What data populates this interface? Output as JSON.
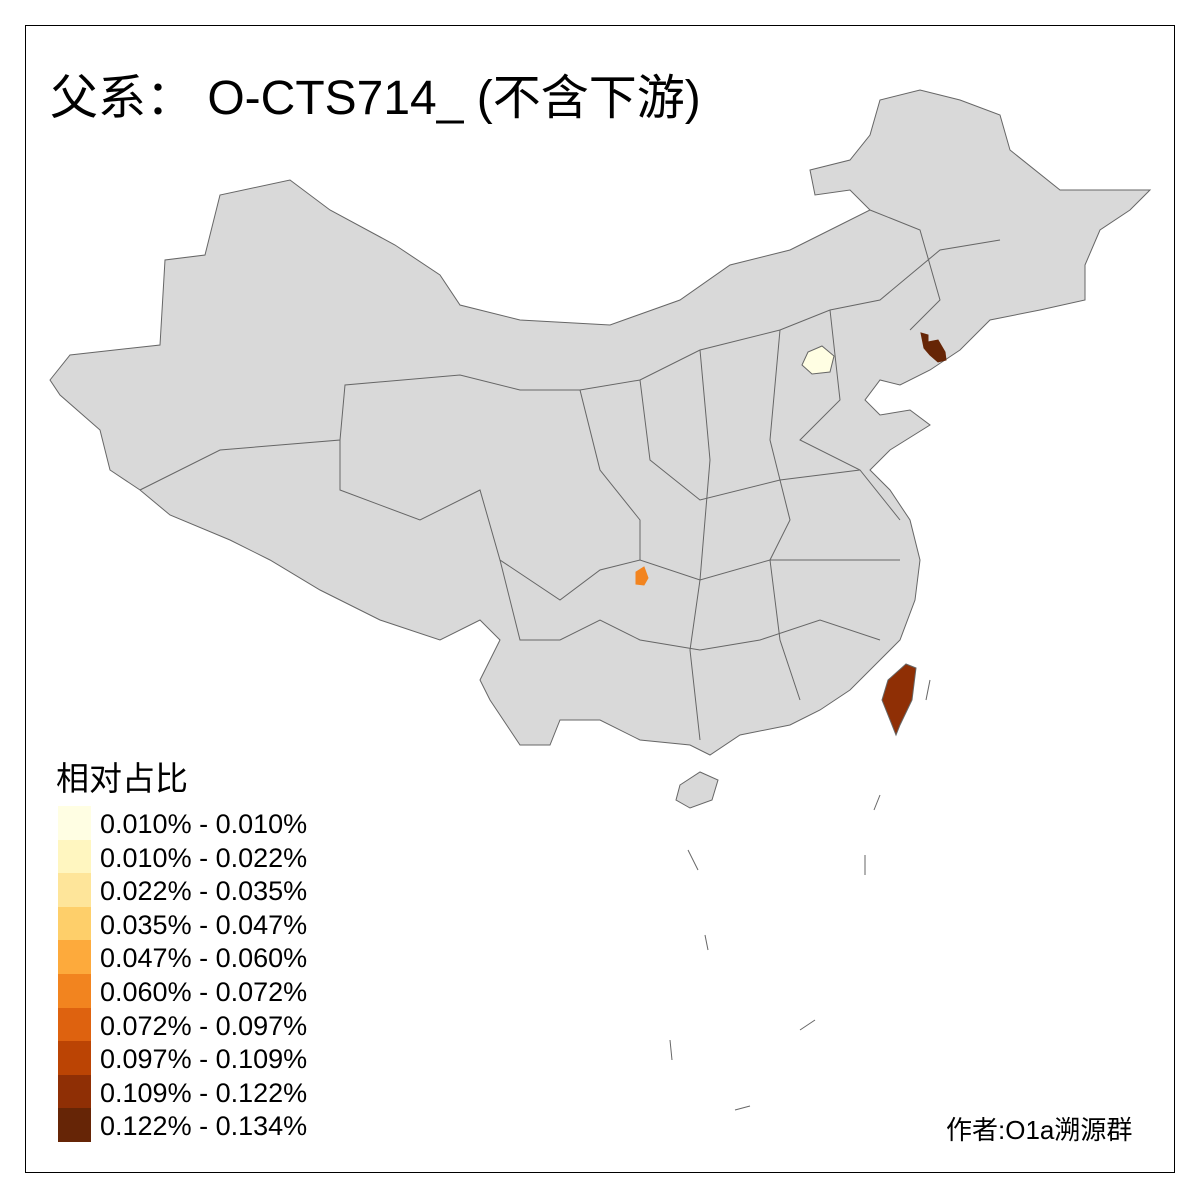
{
  "title": "父系： O-CTS714_ (不含下游)",
  "legend": {
    "title": "相对占比",
    "items": [
      {
        "label": "0.010% - 0.010%",
        "color": "#FFFEE3"
      },
      {
        "label": "0.010% - 0.022%",
        "color": "#FFF6C0"
      },
      {
        "label": "0.022% - 0.035%",
        "color": "#FEE59A"
      },
      {
        "label": "0.035% - 0.047%",
        "color": "#FECF6A"
      },
      {
        "label": "0.047% - 0.060%",
        "color": "#FDAA3C"
      },
      {
        "label": "0.060% - 0.072%",
        "color": "#F2841F"
      },
      {
        "label": "0.072% - 0.097%",
        "color": "#DE620F"
      },
      {
        "label": "0.097% - 0.109%",
        "color": "#BB4404"
      },
      {
        "label": "0.109% - 0.122%",
        "color": "#8F2F05"
      },
      {
        "label": "0.122% - 0.134%",
        "color": "#662506"
      }
    ]
  },
  "map": {
    "base_color": "#D9D9D9",
    "border_color": "#666666",
    "highlighted": [
      {
        "region": "Beijing",
        "color": "#FFFEE3"
      },
      {
        "region": "Guizhou (part)",
        "color": "#F2841F"
      },
      {
        "region": "Liaoning (part)",
        "color": "#662506"
      },
      {
        "region": "Taiwan",
        "color": "#8F2F05"
      }
    ]
  },
  "credit": "作者:O1a溯源群"
}
